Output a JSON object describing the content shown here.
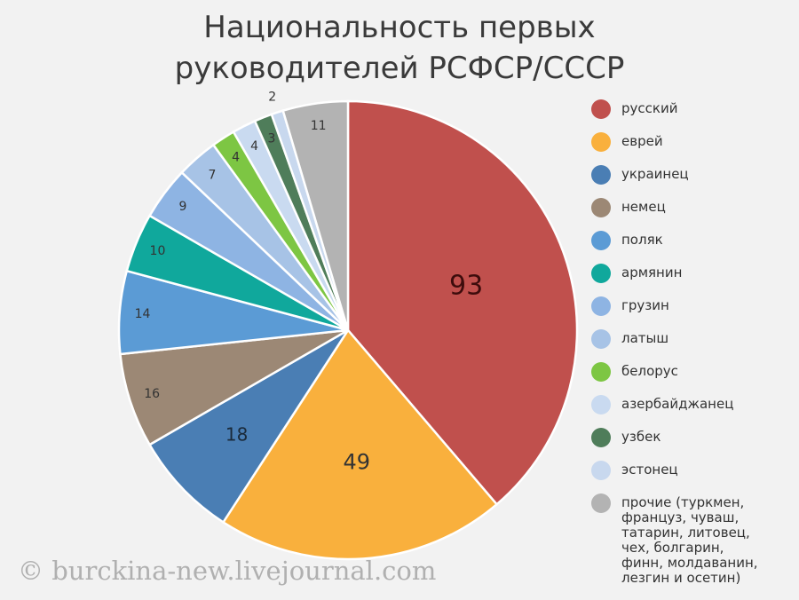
{
  "chart_data": {
    "type": "pie",
    "title": "Национальность первых руководителей РСФСР/СССР",
    "categories": [
      "русский",
      "еврей",
      "украинец",
      "немец",
      "поляк",
      "армянин",
      "грузин",
      "латыш",
      "белорус",
      "азербайджанец",
      "узбек",
      "эстонец",
      "прочие (туркмен, француз, чуваш, татарин, литовец, чех, болгарин, финн, молдаванин, лезгин и осетин)"
    ],
    "values": [
      93,
      49,
      18,
      16,
      14,
      10,
      9,
      7,
      4,
      4,
      3,
      2,
      11
    ],
    "colors": [
      "#c0504d",
      "#f9b03d",
      "#4a7eb4",
      "#9c8875",
      "#5b9bd5",
      "#10a89c",
      "#8eb4e3",
      "#a7c3e6",
      "#7dc643",
      "#c9daf0",
      "#4f7d5a",
      "#c8d8ee",
      "#b3b3b3"
    ],
    "watermark": "© burckina-new.livejournal.com"
  }
}
